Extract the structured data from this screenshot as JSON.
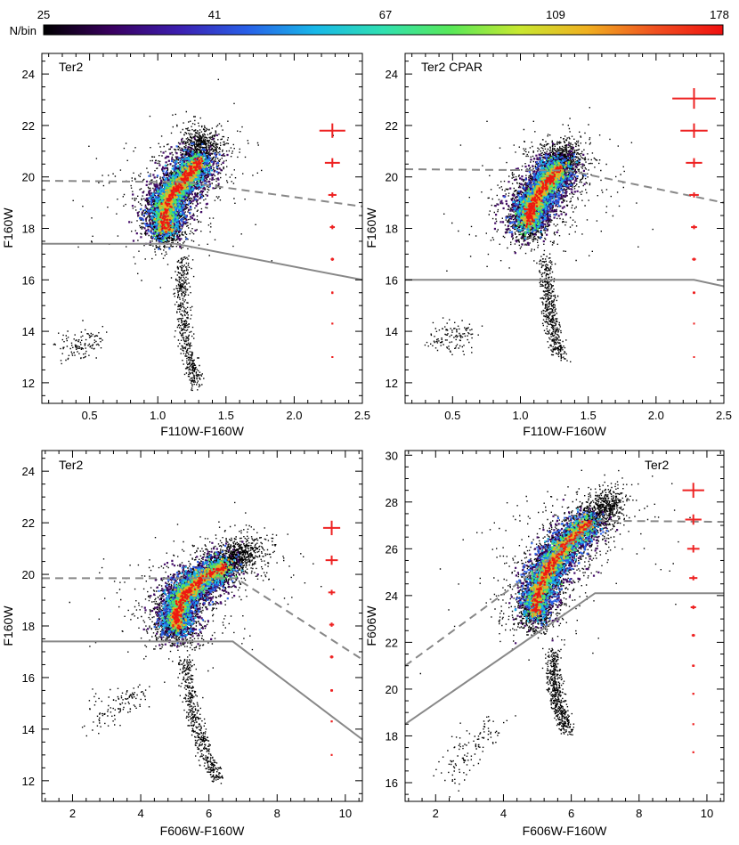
{
  "colorbar": {
    "label": "N/bin",
    "ticks": [
      "25",
      "41",
      "67",
      "109",
      "178"
    ],
    "colors": [
      "#000000",
      "#3a0060",
      "#3c1fb0",
      "#2860e8",
      "#18b8e8",
      "#30e0b0",
      "#58e858",
      "#c8e830",
      "#f0b020",
      "#f05020",
      "#f01010"
    ]
  },
  "colors": {
    "density_low": "#000000",
    "density_high": "#f01010",
    "cut_line": "#888888",
    "error_bar": "#ee2222"
  },
  "chart_data": [
    {
      "type": "scatter",
      "label": "Ter2",
      "xlabel": "F110W-F160W",
      "ylabel": "F160W",
      "xlim": [
        0.15,
        2.5
      ],
      "ylim": [
        24.8,
        11.2
      ],
      "xticks": [
        "0.5",
        "1.0",
        "1.5",
        "2.0",
        "2.5"
      ],
      "xtick_values": [
        0.5,
        1.0,
        1.5,
        2.0,
        2.5
      ],
      "yticks": [
        "12",
        "14",
        "16",
        "18",
        "20",
        "22",
        "24"
      ],
      "ytick_values": [
        12,
        14,
        16,
        18,
        20,
        22,
        24
      ],
      "ridge": [
        [
          1.06,
          17.6
        ],
        [
          1.04,
          18.5
        ],
        [
          1.08,
          19.3
        ],
        [
          1.2,
          20.0
        ],
        [
          1.3,
          20.7
        ],
        [
          1.32,
          21.6
        ]
      ],
      "branch": [
        [
          1.18,
          16.8
        ],
        [
          1.17,
          15.5
        ],
        [
          1.19,
          14.2
        ],
        [
          1.22,
          13.0
        ],
        [
          1.28,
          12.0
        ]
      ],
      "sparse": [
        [
          0.34,
          13.3
        ],
        [
          0.4,
          13.4
        ],
        [
          0.46,
          13.6
        ],
        [
          0.52,
          13.8
        ]
      ],
      "solid_line": [
        [
          0.15,
          17.4
        ],
        [
          1.13,
          17.4
        ],
        [
          2.5,
          16.0
        ]
      ],
      "dashed_line": [
        [
          0.15,
          19.85
        ],
        [
          1.2,
          19.8
        ],
        [
          2.5,
          18.85
        ]
      ],
      "error_bars": [
        {
          "x": 2.28,
          "y": 13.0,
          "xerr": 0.004,
          "yerr": 0.02
        },
        {
          "x": 2.28,
          "y": 14.3,
          "xerr": 0.006,
          "yerr": 0.03
        },
        {
          "x": 2.28,
          "y": 15.5,
          "xerr": 0.008,
          "yerr": 0.05
        },
        {
          "x": 2.28,
          "y": 16.8,
          "xerr": 0.012,
          "yerr": 0.06
        },
        {
          "x": 2.28,
          "y": 18.05,
          "xerr": 0.018,
          "yerr": 0.08
        },
        {
          "x": 2.28,
          "y": 19.3,
          "xerr": 0.03,
          "yerr": 0.1
        },
        {
          "x": 2.28,
          "y": 20.55,
          "xerr": 0.055,
          "yerr": 0.18
        },
        {
          "x": 2.28,
          "y": 21.8,
          "xerr": 0.095,
          "yerr": 0.28
        }
      ]
    },
    {
      "type": "scatter",
      "label": "Ter2 CPAR",
      "xlabel": "F110W-F160W",
      "ylabel": "F160W",
      "xlim": [
        0.15,
        2.5
      ],
      "ylim": [
        24.8,
        11.2
      ],
      "xticks": [
        "0.5",
        "1.0",
        "1.5",
        "2.0",
        "2.5"
      ],
      "xtick_values": [
        0.5,
        1.0,
        1.5,
        2.0,
        2.5
      ],
      "yticks": [
        "12",
        "14",
        "16",
        "18",
        "20",
        "22",
        "24"
      ],
      "ytick_values": [
        12,
        14,
        16,
        18,
        20,
        22,
        24
      ],
      "ridge": [
        [
          1.05,
          17.9
        ],
        [
          1.07,
          18.8
        ],
        [
          1.16,
          19.6
        ],
        [
          1.27,
          20.3
        ],
        [
          1.32,
          21.0
        ]
      ],
      "branch": [
        [
          1.18,
          16.8
        ],
        [
          1.2,
          15.4
        ],
        [
          1.22,
          14.3
        ],
        [
          1.3,
          13.0
        ]
      ],
      "sparse": [
        [
          0.42,
          13.6
        ],
        [
          0.5,
          13.8
        ],
        [
          0.6,
          14.2
        ]
      ],
      "solid_line": [
        [
          0.15,
          16.0
        ],
        [
          2.28,
          16.0
        ],
        [
          2.5,
          15.75
        ]
      ],
      "dashed_line": [
        [
          0.15,
          20.3
        ],
        [
          1.35,
          20.25
        ],
        [
          2.5,
          19.0
        ]
      ],
      "error_bars": [
        {
          "x": 2.28,
          "y": 13.0,
          "xerr": 0.004,
          "yerr": 0.02
        },
        {
          "x": 2.28,
          "y": 14.3,
          "xerr": 0.006,
          "yerr": 0.03
        },
        {
          "x": 2.28,
          "y": 15.5,
          "xerr": 0.01,
          "yerr": 0.05
        },
        {
          "x": 2.28,
          "y": 16.8,
          "xerr": 0.014,
          "yerr": 0.06
        },
        {
          "x": 2.28,
          "y": 18.05,
          "xerr": 0.022,
          "yerr": 0.08
        },
        {
          "x": 2.28,
          "y": 19.3,
          "xerr": 0.035,
          "yerr": 0.1
        },
        {
          "x": 2.28,
          "y": 20.55,
          "xerr": 0.06,
          "yerr": 0.18
        },
        {
          "x": 2.28,
          "y": 21.8,
          "xerr": 0.1,
          "yerr": 0.28
        },
        {
          "x": 2.28,
          "y": 23.05,
          "xerr": 0.16,
          "yerr": 0.4
        }
      ]
    },
    {
      "type": "scatter",
      "label": "Ter2",
      "xlabel": "F606W-F160W",
      "ylabel": "F160W",
      "xlim": [
        1.1,
        10.5
      ],
      "ylim": [
        24.8,
        11.2
      ],
      "xticks": [
        "2",
        "4",
        "6",
        "8",
        "10"
      ],
      "xtick_values": [
        2,
        4,
        6,
        8,
        10
      ],
      "yticks": [
        "12",
        "14",
        "16",
        "18",
        "20",
        "22",
        "24"
      ],
      "ytick_values": [
        12,
        14,
        16,
        18,
        20,
        22,
        24
      ],
      "ridge": [
        [
          5.05,
          17.7
        ],
        [
          5.0,
          18.4
        ],
        [
          5.2,
          19.2
        ],
        [
          5.7,
          19.8
        ],
        [
          6.5,
          20.4
        ],
        [
          7.2,
          21.0
        ]
      ],
      "branch": [
        [
          5.3,
          16.8
        ],
        [
          5.4,
          15.5
        ],
        [
          5.6,
          14.2
        ],
        [
          5.9,
          13.0
        ],
        [
          6.3,
          12.0
        ]
      ],
      "sparse": [
        [
          2.6,
          14.2
        ],
        [
          3.0,
          14.8
        ],
        [
          3.5,
          15.1
        ],
        [
          4.0,
          15.6
        ]
      ],
      "solid_line": [
        [
          1.1,
          17.4
        ],
        [
          6.7,
          17.4
        ],
        [
          10.5,
          13.6
        ]
      ],
      "dashed_line": [
        [
          1.1,
          19.85
        ],
        [
          6.8,
          19.85
        ],
        [
          10.5,
          16.7
        ]
      ],
      "error_bars": [
        {
          "x": 9.6,
          "y": 13.0,
          "xerr": 0.02,
          "yerr": 0.02
        },
        {
          "x": 9.6,
          "y": 14.3,
          "xerr": 0.03,
          "yerr": 0.03
        },
        {
          "x": 9.6,
          "y": 15.5,
          "xerr": 0.04,
          "yerr": 0.05
        },
        {
          "x": 9.6,
          "y": 16.8,
          "xerr": 0.05,
          "yerr": 0.06
        },
        {
          "x": 9.6,
          "y": 18.05,
          "xerr": 0.07,
          "yerr": 0.08
        },
        {
          "x": 9.6,
          "y": 19.3,
          "xerr": 0.1,
          "yerr": 0.1
        },
        {
          "x": 9.6,
          "y": 20.55,
          "xerr": 0.18,
          "yerr": 0.18
        },
        {
          "x": 9.6,
          "y": 21.8,
          "xerr": 0.25,
          "yerr": 0.28
        }
      ]
    },
    {
      "type": "scatter",
      "label": "Ter2",
      "xlabel": "F606W-F160W",
      "ylabel": "F606W",
      "xlim": [
        1.1,
        10.5
      ],
      "ylim": [
        30.2,
        15.2
      ],
      "xticks": [
        "2",
        "4",
        "6",
        "8",
        "10"
      ],
      "xtick_values": [
        2,
        4,
        6,
        8,
        10
      ],
      "yticks": [
        "16",
        "18",
        "20",
        "22",
        "24",
        "26",
        "28",
        "30"
      ],
      "ytick_values": [
        16,
        18,
        20,
        22,
        24,
        26,
        28,
        30
      ],
      "ridge": [
        [
          4.9,
          22.8
        ],
        [
          4.95,
          24.0
        ],
        [
          5.3,
          25.2
        ],
        [
          5.8,
          26.2
        ],
        [
          6.5,
          27.2
        ],
        [
          7.2,
          28.1
        ]
      ],
      "branch": [
        [
          5.4,
          21.6
        ],
        [
          5.5,
          20.4
        ],
        [
          5.6,
          19.3
        ],
        [
          5.9,
          18.2
        ]
      ],
      "sparse": [
        [
          2.4,
          16.2
        ],
        [
          2.8,
          17.1
        ],
        [
          3.2,
          17.8
        ],
        [
          3.8,
          18.6
        ]
      ],
      "solid_line": [
        [
          1.1,
          18.5
        ],
        [
          6.7,
          24.1
        ],
        [
          10.5,
          24.1
        ]
      ],
      "dashed_line": [
        [
          1.1,
          21.0
        ],
        [
          4.5,
          24.6
        ],
        [
          6.8,
          27.2
        ],
        [
          10.5,
          27.15
        ]
      ],
      "error_bars": [
        {
          "x": 9.6,
          "y": 17.3,
          "xerr": 0.02,
          "yerr": 0.02
        },
        {
          "x": 9.6,
          "y": 18.5,
          "xerr": 0.02,
          "yerr": 0.03
        },
        {
          "x": 9.6,
          "y": 19.8,
          "xerr": 0.03,
          "yerr": 0.04
        },
        {
          "x": 9.6,
          "y": 21.0,
          "xerr": 0.04,
          "yerr": 0.05
        },
        {
          "x": 9.6,
          "y": 22.3,
          "xerr": 0.05,
          "yerr": 0.06
        },
        {
          "x": 9.6,
          "y": 23.5,
          "xerr": 0.08,
          "yerr": 0.08
        },
        {
          "x": 9.6,
          "y": 24.75,
          "xerr": 0.12,
          "yerr": 0.1
        },
        {
          "x": 9.6,
          "y": 26.0,
          "xerr": 0.18,
          "yerr": 0.16
        },
        {
          "x": 9.6,
          "y": 27.25,
          "xerr": 0.24,
          "yerr": 0.22
        },
        {
          "x": 9.6,
          "y": 28.5,
          "xerr": 0.32,
          "yerr": 0.32
        }
      ]
    }
  ]
}
